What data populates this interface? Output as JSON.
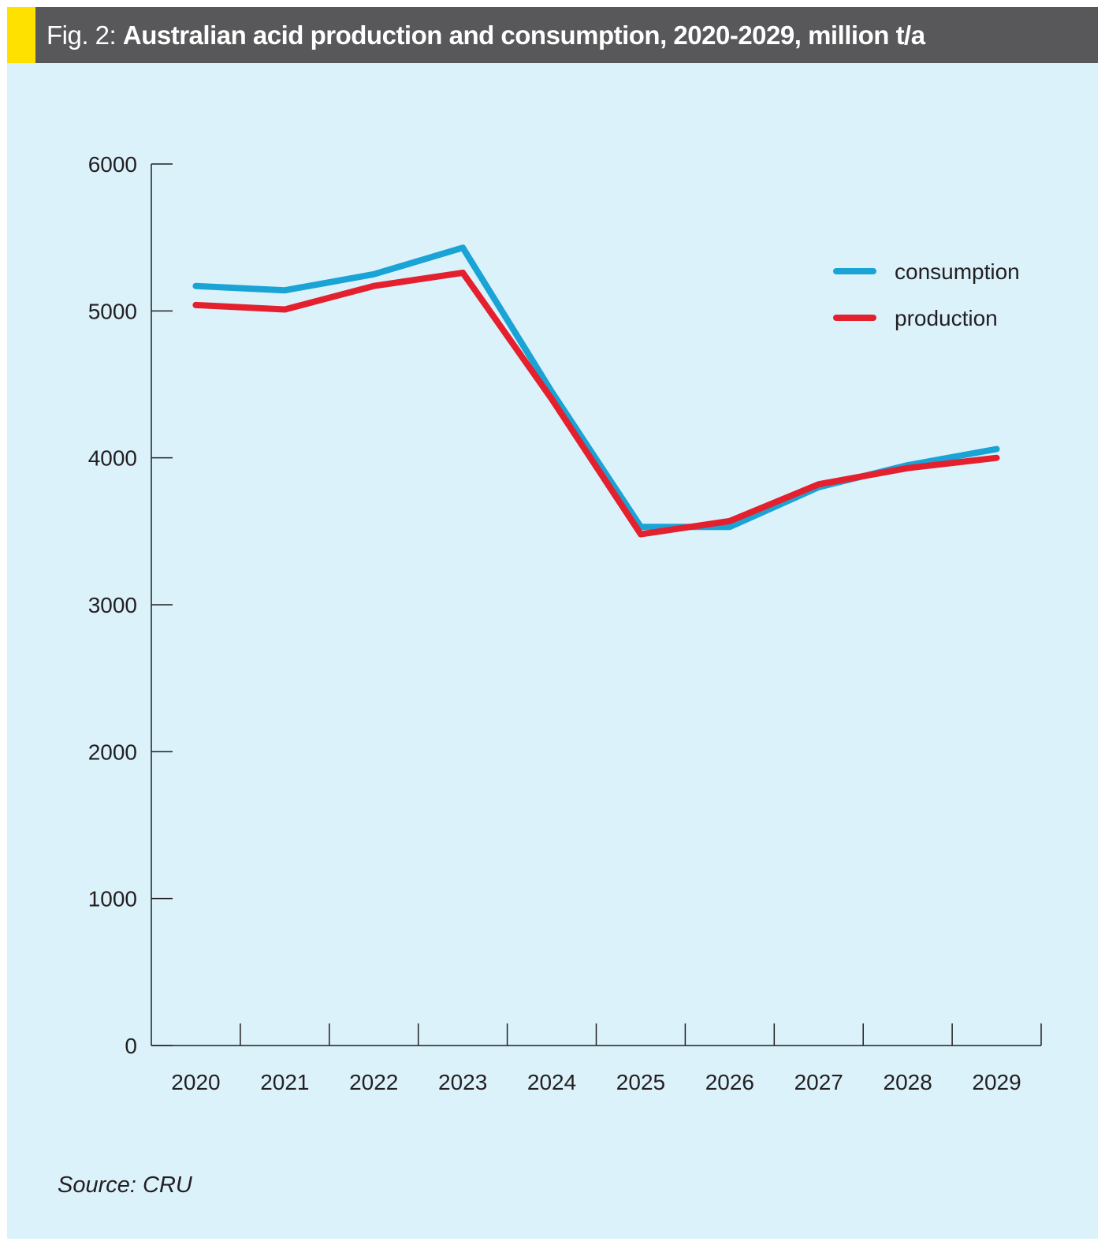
{
  "header": {
    "title_prefix": "Fig. 2: ",
    "title_main": "Australian acid production and consumption, 2020-2029, million t/a",
    "accent_color": "#ffe100",
    "bar_color": "#58585a"
  },
  "source": "Source: CRU",
  "chart_data": {
    "type": "line",
    "title": "Australian acid production and consumption, 2020-2029, million t/a",
    "xlabel": "",
    "ylabel": "",
    "categories": [
      "2020",
      "2021",
      "2022",
      "2023",
      "2024",
      "2025",
      "2026",
      "2027",
      "2028",
      "2029"
    ],
    "yticks": [
      "0",
      "1000",
      "2000",
      "3000",
      "4000",
      "5000",
      "6000"
    ],
    "ylim": [
      0,
      6000
    ],
    "grid": false,
    "legend_position": "top-right",
    "series": [
      {
        "name": "consumption",
        "color": "#1aa3d5",
        "values": [
          5170,
          5140,
          5250,
          5430,
          4450,
          3530,
          3530,
          3800,
          3950,
          4060
        ]
      },
      {
        "name": "production",
        "color": "#e4202f",
        "values": [
          5040,
          5010,
          5170,
          5260,
          4400,
          3480,
          3570,
          3820,
          3930,
          4000
        ]
      }
    ]
  }
}
